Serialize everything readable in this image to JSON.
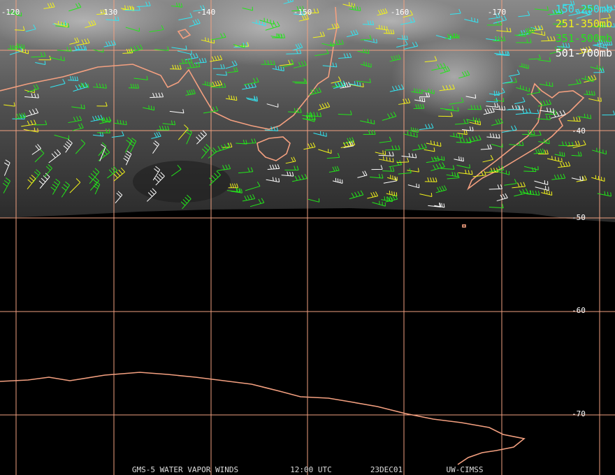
{
  "map": {
    "lon_labels": [
      "-120",
      "-130",
      "-140",
      "-150",
      "-160",
      "-170"
    ],
    "lat_labels": [
      "-40",
      "-50",
      "-60",
      "-70"
    ],
    "legend": [
      {
        "label": "150-250mb",
        "color": "#33e6f2"
      },
      {
        "label": "251-350mb",
        "color": "#f2f21a"
      },
      {
        "label": "351-500mb",
        "color": "#22e61a"
      },
      {
        "label": "501-700mb",
        "color": "#ffffff"
      }
    ],
    "footer": [
      "GMS-5 WATER VAPOR WINDS",
      "12:00 UTC",
      "23DEC01",
      "UW-CIMSS"
    ]
  }
}
